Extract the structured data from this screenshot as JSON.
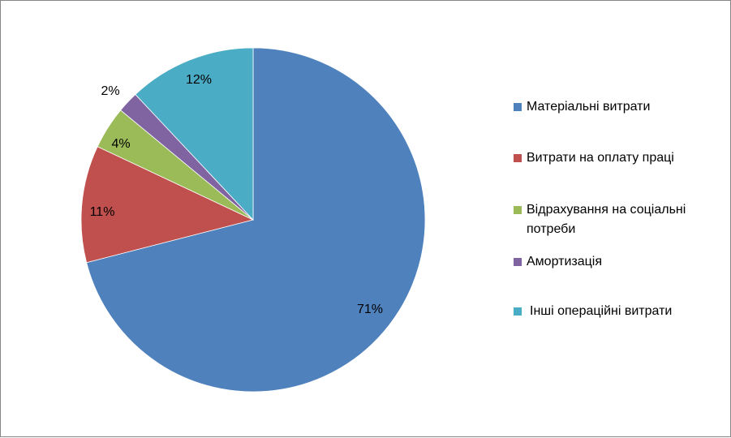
{
  "chart_data": {
    "type": "pie",
    "start_angle_deg": 0,
    "direction": "clockwise",
    "legend_position": "right",
    "slices": [
      {
        "label": "Матеріальні витрати",
        "value": 71,
        "value_label": "71%",
        "color": "#4F81BD"
      },
      {
        "label": "Витрати на оплату праці",
        "value": 11,
        "value_label": "11%",
        "color": "#C0504D"
      },
      {
        "label": "Відрахування на соціальні потреби",
        "value": 4,
        "value_label": "4%",
        "color": "#9BBB59"
      },
      {
        "label": "Амортизація",
        "value": 2,
        "value_label": "2%",
        "color": "#8064A2"
      },
      {
        "label": "Інші операційні витрати",
        "value": 12,
        "value_label": "12%",
        "color": "#4BACC6"
      }
    ]
  }
}
